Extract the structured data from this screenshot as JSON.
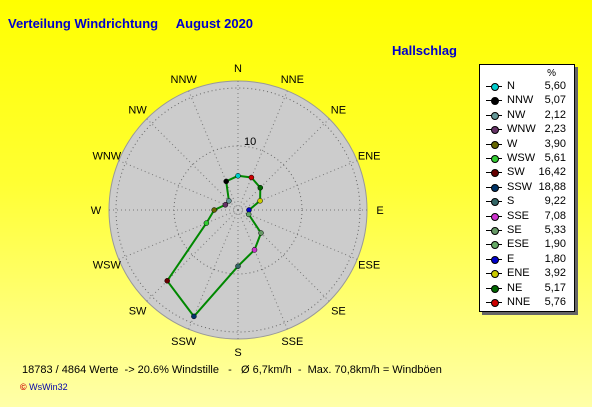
{
  "header": {
    "title": "Verteilung Windrichtung",
    "month": "August 2020",
    "station": "Hallschlag"
  },
  "chart_data": {
    "type": "radar",
    "title": "Verteilung Windrichtung",
    "subtitle": "August 2020",
    "unit": "%",
    "ring_label": "10",
    "rmax": 20,
    "directions": [
      "N",
      "NNE",
      "NE",
      "ENE",
      "E",
      "ESE",
      "SE",
      "SSE",
      "S",
      "SSW",
      "SW",
      "WSW",
      "W",
      "WNW",
      "NW",
      "NNW"
    ],
    "values": [
      5.6,
      5.76,
      5.17,
      3.92,
      1.8,
      1.9,
      5.33,
      7.08,
      9.22,
      18.88,
      16.42,
      5.61,
      3.9,
      2.23,
      2.12,
      5.07
    ],
    "series_colors": {
      "N": "#00cccc",
      "NNE": "#cc0000",
      "NE": "#006600",
      "ENE": "#cccc00",
      "E": "#0000cc",
      "ESE": "#66aa66",
      "SE": "#669966",
      "SSE": "#cc33cc",
      "S": "#336666",
      "SSW": "#003366",
      "SW": "#660000",
      "WSW": "#33cc33",
      "W": "#666600",
      "WNW": "#663366",
      "NW": "#669999",
      "NNW": "#000000"
    },
    "grid": true
  },
  "legend": {
    "unit": "%",
    "items": [
      {
        "name": "N",
        "value": "5,60",
        "color": "#00cccc"
      },
      {
        "name": "NNW",
        "value": "5,07",
        "color": "#000000"
      },
      {
        "name": "NW",
        "value": "2,12",
        "color": "#669999"
      },
      {
        "name": "WNW",
        "value": "2,23",
        "color": "#663366"
      },
      {
        "name": "W",
        "value": "3,90",
        "color": "#666600"
      },
      {
        "name": "WSW",
        "value": "5,61",
        "color": "#33cc33"
      },
      {
        "name": "SW",
        "value": "16,42",
        "color": "#660000"
      },
      {
        "name": "SSW",
        "value": "18,88",
        "color": "#003366"
      },
      {
        "name": "S",
        "value": "9,22",
        "color": "#336666"
      },
      {
        "name": "SSE",
        "value": "7,08",
        "color": "#cc33cc"
      },
      {
        "name": "SE",
        "value": "5,33",
        "color": "#669966"
      },
      {
        "name": "ESE",
        "value": "1,90",
        "color": "#66aa66"
      },
      {
        "name": "E",
        "value": "1,80",
        "color": "#0000cc"
      },
      {
        "name": "ENE",
        "value": "3,92",
        "color": "#cccc00"
      },
      {
        "name": "NE",
        "value": "5,17",
        "color": "#006600"
      },
      {
        "name": "NNE",
        "value": "5,76",
        "color": "#cc0000"
      }
    ]
  },
  "footer": {
    "text": "18783 / 4864 Werte  -> 20.6% Windstille   -   Ø 6,7km/h  -  Max. 70,8km/h = Windböen",
    "logo_prefix": "© ",
    "logo_text": "WsWin32"
  },
  "colors": {
    "title": "#0000cc",
    "plot_bg": "#cccccc",
    "line": "#008800"
  }
}
